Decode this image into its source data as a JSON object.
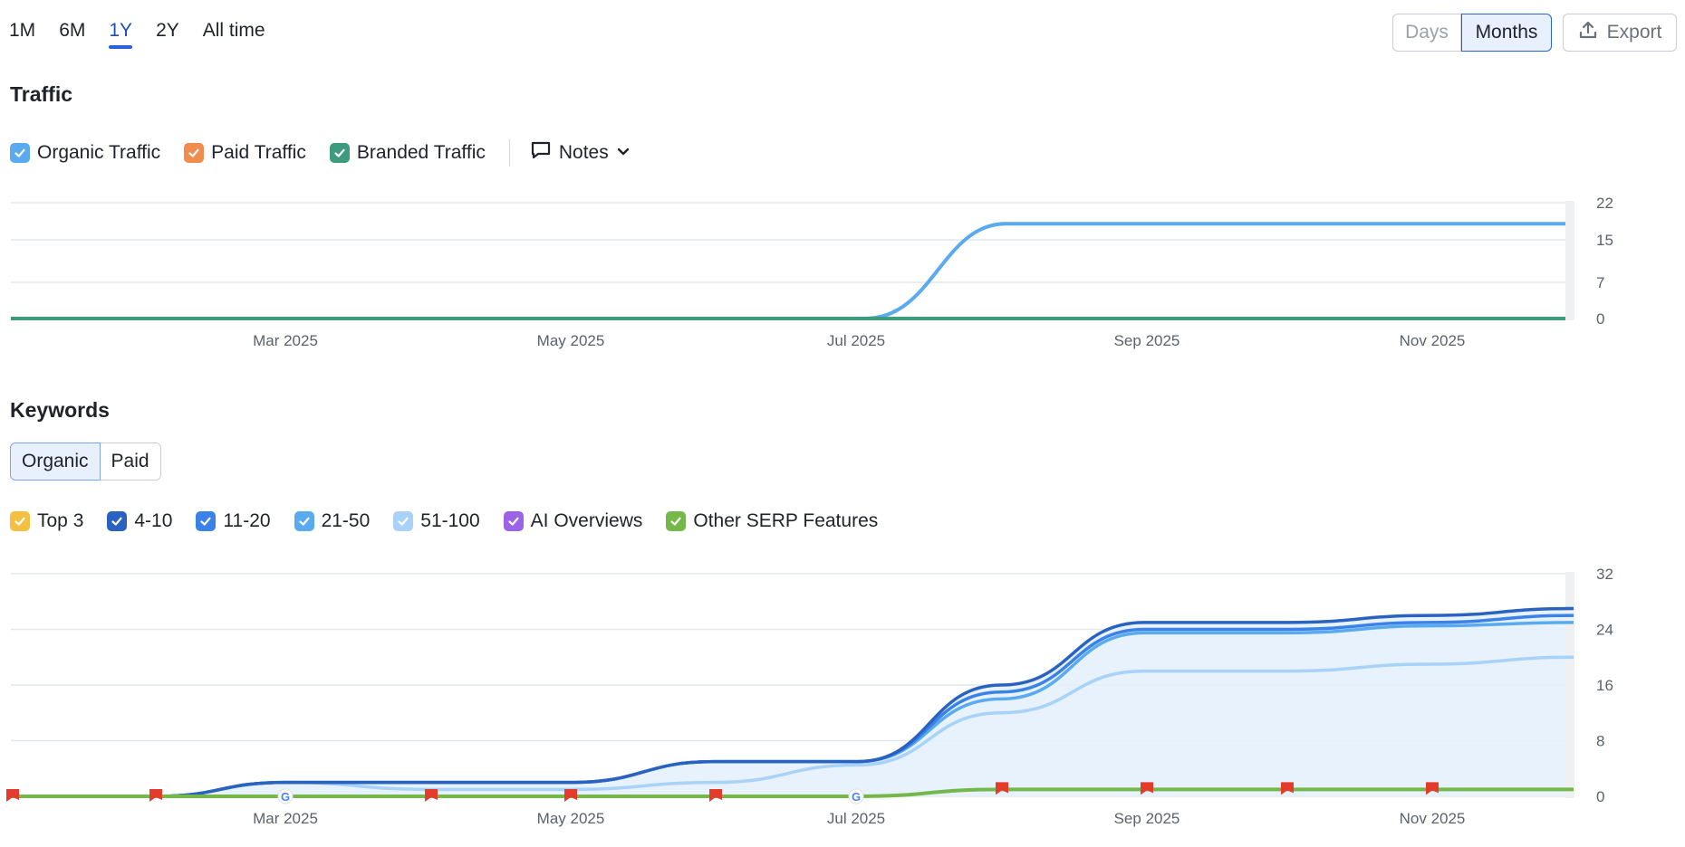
{
  "period_tabs": [
    "1M",
    "6M",
    "1Y",
    "2Y",
    "All time"
  ],
  "active_period": "1Y",
  "granularity": {
    "days": "Days",
    "months": "Months",
    "selected": "Months"
  },
  "export": {
    "label": "Export",
    "icon": "upload-icon"
  },
  "traffic": {
    "title": "Traffic",
    "legend": [
      {
        "label": "Organic Traffic",
        "color": "#5aaaf0",
        "checked": true
      },
      {
        "label": "Paid Traffic",
        "color": "#f08c4d",
        "checked": true
      },
      {
        "label": "Branded Traffic",
        "color": "#3d9b7e",
        "checked": true
      }
    ],
    "notes_label": "Notes"
  },
  "keywords": {
    "title": "Keywords",
    "toggle": {
      "organic": "Organic",
      "paid": "Paid",
      "selected": "Organic"
    },
    "legend": [
      {
        "label": "Top 3",
        "color": "#f5bf42",
        "checked": true
      },
      {
        "label": "4-10",
        "color": "#2a62c0",
        "checked": true
      },
      {
        "label": "11-20",
        "color": "#3b82e8",
        "checked": true
      },
      {
        "label": "21-50",
        "color": "#5aaaf0",
        "checked": true
      },
      {
        "label": "51-100",
        "color": "#a9d2f8",
        "checked": true
      },
      {
        "label": "AI Overviews",
        "color": "#9b63e8",
        "checked": true
      },
      {
        "label": "Other SERP Features",
        "color": "#74b84a",
        "checked": true
      }
    ]
  },
  "chart_data": [
    {
      "type": "line",
      "title": "Traffic",
      "x_tick_labels": [
        "Mar 2025",
        "May 2025",
        "Jul 2025",
        "Sep 2025",
        "Nov 2025"
      ],
      "y_tick_labels": [
        "0",
        "7",
        "15",
        "22"
      ],
      "ylim": [
        0,
        22
      ],
      "x": [
        "Jan 2025",
        "Feb 2025",
        "Mar 2025",
        "Apr 2025",
        "May 2025",
        "Jun 2025",
        "Jul 2025",
        "Aug 2025",
        "Sep 2025",
        "Oct 2025",
        "Nov 2025",
        "Dec 2025"
      ],
      "series": [
        {
          "name": "Organic Traffic",
          "color": "#5aaaf0",
          "values": [
            0,
            0,
            0,
            0,
            0,
            0,
            0,
            18,
            18,
            18,
            18,
            18
          ]
        },
        {
          "name": "Branded Traffic",
          "color": "#3d9b7e",
          "values": [
            0,
            0,
            0,
            0,
            0,
            0,
            0,
            0,
            0,
            0,
            0,
            0
          ]
        }
      ],
      "grid": true
    },
    {
      "type": "area",
      "title": "Keywords",
      "x_tick_labels": [
        "Mar 2025",
        "May 2025",
        "Jul 2025",
        "Sep 2025",
        "Nov 2025"
      ],
      "y_tick_labels": [
        "0",
        "8",
        "16",
        "24",
        "32"
      ],
      "ylim": [
        0,
        32
      ],
      "x": [
        "Jan 2025",
        "Feb 2025",
        "Mar 2025",
        "Apr 2025",
        "May 2025",
        "Jun 2025",
        "Jul 2025",
        "Aug 2025",
        "Sep 2025",
        "Oct 2025",
        "Nov 2025",
        "Dec 2025"
      ],
      "series": [
        {
          "name": "4-10",
          "color": "#2a62c0",
          "values": [
            0,
            0,
            2,
            2,
            2,
            5,
            5,
            16,
            25,
            25,
            26,
            27
          ]
        },
        {
          "name": "11-20",
          "color": "#3b82e8",
          "values": [
            0,
            0,
            2,
            2,
            2,
            5,
            5,
            15,
            24,
            24,
            25,
            26
          ]
        },
        {
          "name": "21-50",
          "color": "#5aaaf0",
          "values": [
            0,
            0,
            2,
            2,
            2,
            5,
            5,
            14,
            23.5,
            23.5,
            24.5,
            25
          ]
        },
        {
          "name": "51-100",
          "color": "#a9d2f8",
          "values": [
            0,
            0,
            2,
            1,
            1,
            2,
            4.5,
            12,
            18,
            18,
            19,
            20
          ]
        },
        {
          "name": "Other SERP Features",
          "color": "#74b84a",
          "values": [
            0,
            0,
            0,
            0,
            0,
            0,
            0,
            1,
            1,
            1,
            1,
            1
          ]
        }
      ],
      "notes_markers": [
        "Jan 2025",
        "Feb 2025",
        "Apr 2025",
        "May 2025",
        "Jun 2025",
        "Aug 2025",
        "Sep 2025",
        "Oct 2025",
        "Nov 2025"
      ],
      "google_markers": [
        "Mar 2025",
        "Jul 2025"
      ],
      "grid": true
    }
  ]
}
